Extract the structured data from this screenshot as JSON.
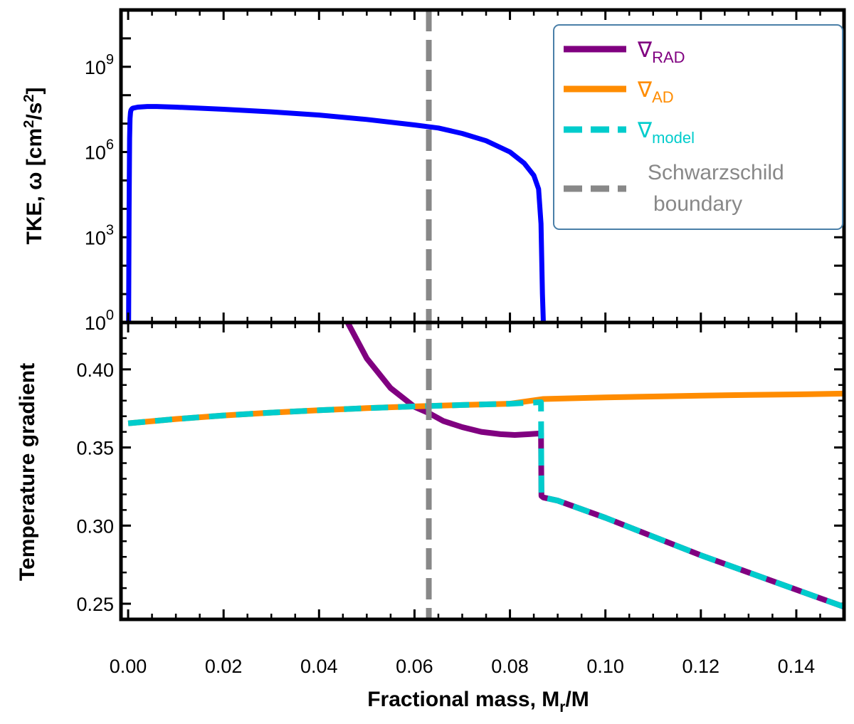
{
  "chart_data": [
    {
      "panel": "top",
      "type": "line",
      "ylabel": "TKE, ω [cm²/s²]",
      "ylabel_parts": {
        "main": "TKE, ω [cm",
        "sup1": "2",
        "mid": "/s",
        "sup2": "2",
        "end": "]"
      },
      "yscale": "log",
      "ylim": [
        1,
        100000000000
      ],
      "xlim": [
        -0.0015,
        0.15
      ],
      "yticks": [
        {
          "exp": "0",
          "value": 1
        },
        {
          "exp": "3",
          "value": 1000
        },
        {
          "exp": "6",
          "value": 1000000
        },
        {
          "exp": "9",
          "value": 1000000000
        }
      ],
      "series": [
        {
          "name": "TKE",
          "color": "#0000ff",
          "x": [
            0.0001,
            0.0002,
            0.0003,
            0.0004,
            0.0005,
            0.0006,
            0.0008,
            0.001,
            0.002,
            0.004,
            0.006,
            0.01,
            0.02,
            0.03,
            0.04,
            0.05,
            0.06,
            0.065,
            0.07,
            0.075,
            0.08,
            0.083,
            0.085,
            0.086,
            0.0865,
            0.0868,
            0.087
          ],
          "y": [
            1,
            10000,
            3000000,
            15000000,
            25000000,
            30000000,
            33000000,
            35000000,
            38000000,
            40000000,
            40000000,
            38000000,
            32000000,
            26000000,
            20000000,
            14000000,
            9000000,
            7000000,
            4500000,
            2500000,
            1000000,
            400000,
            150000,
            50000,
            3000,
            10,
            1
          ]
        }
      ]
    },
    {
      "panel": "bottom",
      "type": "line",
      "title": "",
      "xlabel": "Fractional mass, Mr/M",
      "xlabel_parts": {
        "main": "Fractional mass, M",
        "sub": "r",
        "end": "/M"
      },
      "ylabel": "Temperature gradient",
      "xlim": [
        -0.0015,
        0.15
      ],
      "ylim": [
        0.24,
        0.43
      ],
      "xticks": [
        "0.00",
        "0.02",
        "0.04",
        "0.06",
        "0.08",
        "0.10",
        "0.12",
        "0.14"
      ],
      "xtick_values": [
        0,
        0.02,
        0.04,
        0.06,
        0.08,
        0.1,
        0.12,
        0.14
      ],
      "yticks": [
        "0.25",
        "0.30",
        "0.35",
        "0.40"
      ],
      "ytick_values": [
        0.25,
        0.3,
        0.35,
        0.4
      ],
      "series": [
        {
          "name": "∇RAD",
          "color": "#800080",
          "x": [
            0.046,
            0.05,
            0.055,
            0.06,
            0.063,
            0.066,
            0.07,
            0.074,
            0.078,
            0.081,
            0.084,
            0.0865,
            0.0866,
            0.087,
            0.09,
            0.1,
            0.11,
            0.12,
            0.13,
            0.14,
            0.15
          ],
          "y": [
            0.43,
            0.407,
            0.388,
            0.376,
            0.372,
            0.367,
            0.363,
            0.36,
            0.3585,
            0.358,
            0.3585,
            0.359,
            0.319,
            0.318,
            0.316,
            0.305,
            0.293,
            0.281,
            0.27,
            0.259,
            0.248
          ]
        },
        {
          "name": "∇AD",
          "color": "#ff8c00",
          "x": [
            0.0,
            0.01,
            0.02,
            0.03,
            0.04,
            0.05,
            0.06,
            0.07,
            0.08,
            0.087,
            0.1,
            0.11,
            0.12,
            0.13,
            0.14,
            0.15
          ],
          "y": [
            0.3655,
            0.3682,
            0.3705,
            0.3723,
            0.3738,
            0.3752,
            0.3763,
            0.3772,
            0.378,
            0.381,
            0.382,
            0.3826,
            0.3832,
            0.3836,
            0.384,
            0.3845
          ]
        },
        {
          "name": "∇model",
          "color": "#00cccc",
          "dashed": true,
          "x": [
            0.0,
            0.01,
            0.02,
            0.03,
            0.04,
            0.05,
            0.06,
            0.07,
            0.08,
            0.0865,
            0.0866,
            0.087,
            0.09,
            0.1,
            0.11,
            0.12,
            0.13,
            0.14,
            0.15
          ],
          "y": [
            0.3655,
            0.3682,
            0.3705,
            0.3723,
            0.3738,
            0.3752,
            0.3763,
            0.3772,
            0.378,
            0.379,
            0.319,
            0.318,
            0.316,
            0.305,
            0.293,
            0.281,
            0.27,
            0.259,
            0.248
          ]
        }
      ],
      "vline": {
        "name": "Schwarzschild boundary",
        "x": 0.063,
        "color": "#888888",
        "dashed": true
      }
    }
  ],
  "legend": {
    "position": "top-right",
    "entries": [
      {
        "key": "rad",
        "symbol": "∇",
        "sub": "RAD",
        "color": "#800080",
        "style": "solid"
      },
      {
        "key": "ad",
        "symbol": "∇",
        "sub": "AD",
        "color": "#ff8c00",
        "style": "solid"
      },
      {
        "key": "model",
        "symbol": "∇",
        "sub": "model",
        "color": "#00cccc",
        "style": "dashed"
      },
      {
        "key": "schwarz",
        "line1": "Schwarzschild",
        "line2": "boundary",
        "color": "#888888",
        "style": "dashed"
      }
    ]
  }
}
